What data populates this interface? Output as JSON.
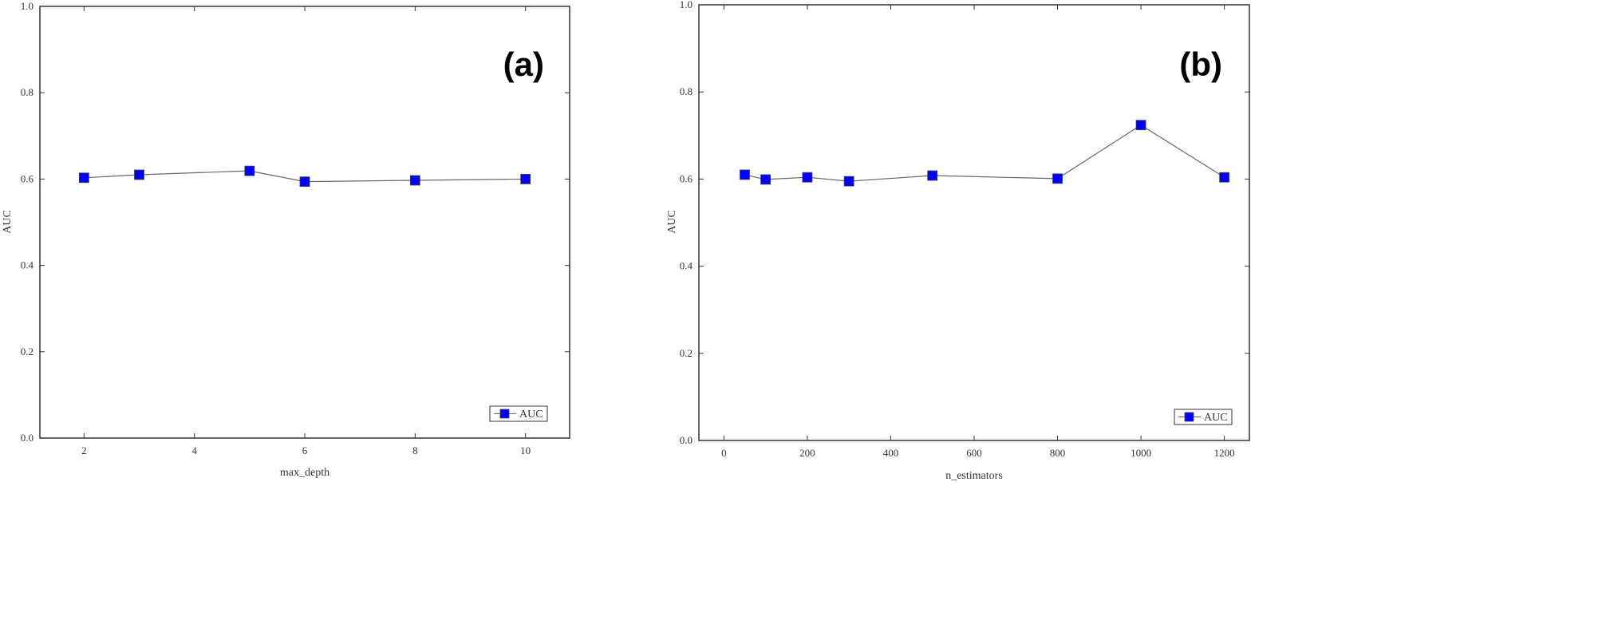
{
  "chart_data": [
    {
      "type": "line",
      "panel_label": "(a)",
      "xlabel": "max_depth",
      "ylabel": "AUC",
      "xlim": [
        1.2,
        10.8
      ],
      "ylim": [
        0.0,
        1.0
      ],
      "xticks": [
        2,
        4,
        6,
        8,
        10
      ],
      "yticks": [
        0.0,
        0.2,
        0.4,
        0.6,
        0.8,
        1.0
      ],
      "legend_position": "bottom-right",
      "series": [
        {
          "name": "AUC",
          "color": "#0000ff",
          "x": [
            2,
            3,
            5,
            6,
            8,
            10
          ],
          "y": [
            0.603,
            0.61,
            0.619,
            0.594,
            0.597,
            0.6
          ]
        }
      ]
    },
    {
      "type": "line",
      "panel_label": "(b)",
      "xlabel": "n_estimators",
      "ylabel": "AUC",
      "xlim": [
        -60,
        1260
      ],
      "ylim": [
        0.0,
        1.0
      ],
      "xticks": [
        0,
        200,
        400,
        600,
        800,
        1000,
        1200
      ],
      "yticks": [
        0.0,
        0.2,
        0.4,
        0.6,
        0.8,
        1.0
      ],
      "legend_position": "bottom-right",
      "series": [
        {
          "name": "AUC",
          "color": "#0000ff",
          "x": [
            50,
            100,
            200,
            300,
            500,
            800,
            1000,
            1200
          ],
          "y": [
            0.61,
            0.599,
            0.604,
            0.595,
            0.608,
            0.601,
            0.724,
            0.604
          ]
        }
      ]
    }
  ]
}
